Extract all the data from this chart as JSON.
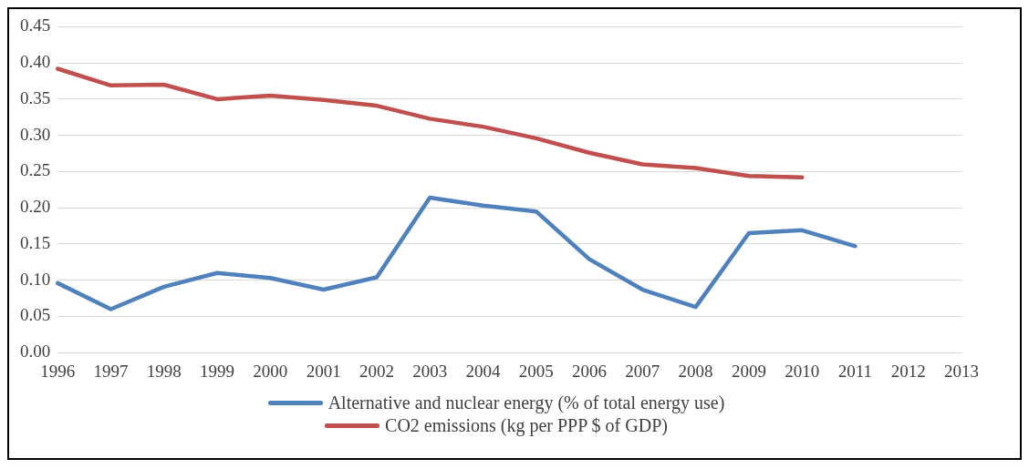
{
  "chart_data": {
    "type": "line",
    "categories": [
      "1996",
      "1997",
      "1998",
      "1999",
      "2000",
      "2001",
      "2002",
      "2003",
      "2004",
      "2005",
      "2006",
      "2007",
      "2008",
      "2009",
      "2010",
      "2011",
      "2012",
      "2013"
    ],
    "series": [
      {
        "name": "Alternative and nuclear energy (% of total energy use)",
        "color": "#4f81bd",
        "values": [
          0.096,
          0.06,
          0.091,
          0.11,
          0.103,
          0.087,
          0.104,
          0.214,
          0.203,
          0.195,
          0.129,
          0.087,
          0.063,
          0.165,
          0.169,
          0.147,
          null,
          null
        ]
      },
      {
        "name": "CO2 emissions (kg per PPP $ of GDP)",
        "color": "#c0504d",
        "values": [
          0.392,
          0.369,
          0.37,
          0.35,
          0.355,
          0.349,
          0.341,
          0.323,
          0.312,
          0.296,
          0.276,
          0.26,
          0.255,
          0.244,
          0.242,
          null,
          null,
          null
        ]
      }
    ],
    "ylim": [
      0,
      0.45
    ],
    "yticks": [
      {
        "value": 0,
        "label": "0.00"
      },
      0.05,
      {
        "value": 0.1,
        "label": "0.10"
      },
      0.15,
      {
        "value": 0.2,
        "label": "0.20"
      },
      0.25,
      {
        "value": 0.3,
        "label": "0.30"
      },
      0.35,
      {
        "value": 0.4,
        "label": "0.40"
      },
      0.45
    ],
    "grid": "y",
    "legend": "bottom",
    "marker": "none",
    "line_style": "solid"
  }
}
